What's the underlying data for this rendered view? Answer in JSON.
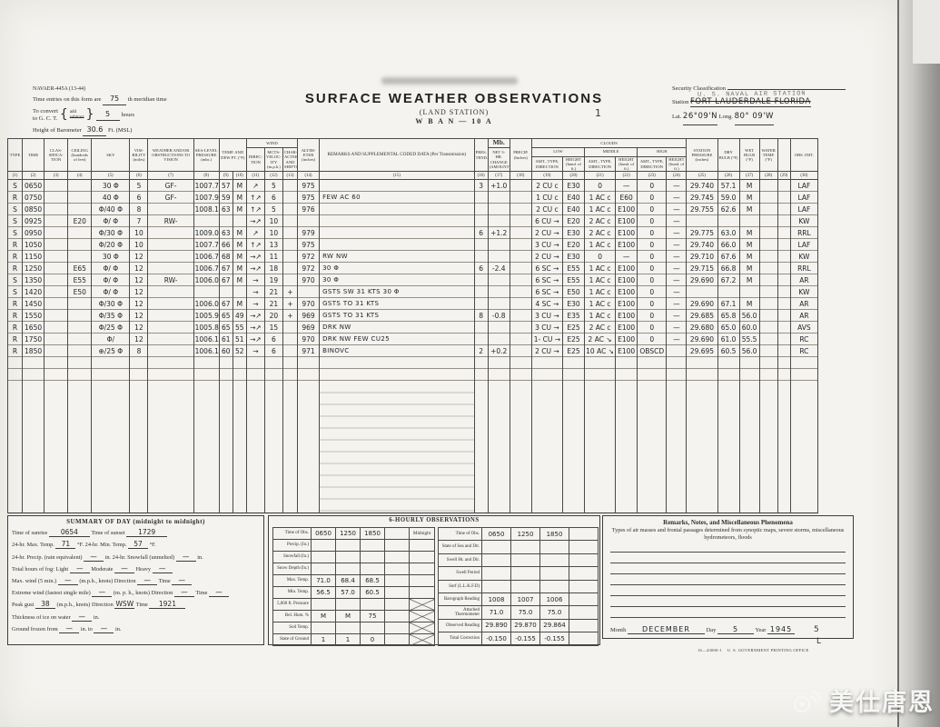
{
  "scan": {
    "watermark_text": "美仕唐恩",
    "stray_mark_1": "1",
    "stray_mark_5": "5",
    "stray_mark_L": "L"
  },
  "header": {
    "form_number": "NAVAER-445A (13-44)",
    "time_entries_prefix": "Time entries on this form are",
    "meridian": "75",
    "time_entries_suffix": "th meridian time",
    "convert_prefix": "To convert",
    "convert_line2": "to G. C. T.",
    "brace_add": "add",
    "brace_subtract": "subtract",
    "convert_hours": "5",
    "convert_suffix": "hours",
    "barometer_label": "Height of Barometer",
    "barometer_value": "30.6",
    "barometer_suffix": "Ft. (MSL)",
    "title": "SURFACE WEATHER OBSERVATIONS",
    "subtitle": "(LAND STATION)",
    "form_code": "W B A N — 10 A",
    "security_label": "Security Classification",
    "security_stamp": "U. S. NAVAL AIR STATION",
    "station_label": "Station",
    "station_value": "FORT LAUDERDALE FLORIDA",
    "lat_label": "Lat.",
    "lat_value": "26°09'N",
    "long_label": "Long.",
    "long_value": "80° 09'W"
  },
  "table": {
    "group_wind": "WIND",
    "group_mb": "Mb.",
    "group_clouds": "CLOUDS",
    "group_low": "LOW",
    "group_middle": "MIDDLE",
    "group_high": "HIGH",
    "columns": {
      "type": "TYPE",
      "time": "TIME",
      "classification": "CLAS-SIFICA-TION",
      "ceiling": "CEILING (hundreds of feet)",
      "sky": "SKY",
      "visibility": "VISI-BILITY (miles)",
      "weather": "WEATHER AND/OR OBSTRUCTIONS TO VISION",
      "sea_level_pressure": "SEA-LEVEL PRESSURE (mbs.)",
      "temp_dew": "TEMP. AND DEW PT. (°F)",
      "direction": "DIREC-TION",
      "velocity": "MCTS-VELOC-ITY (m.p.h.)",
      "character": "CHAR-ACTER AND SHIFTS",
      "altimeter": "ALTIM-ETER (inches)",
      "remarks": "REMARKS AND SUPPLEMENTAL CODED DATA (Per Transmission)",
      "pres_tend": "PRES. TEND.",
      "net_change": "NET 3-HR. CHANGE (AMOUNT)",
      "precip": "PRECIP. (Inches)",
      "amt_type_dir": "AMT., TYPE, DIRECTION",
      "height": "HEIGHT (hund. of ft.)",
      "station_pressure": "STATION PRESSURE (inches)",
      "dry_bulb": "DRY BULB (°F)",
      "wet_bulb": "WET BULB (°F)",
      "water_temp": "WATER TEMP. (°F)",
      "obs_init": "OBS. INIT."
    },
    "col_nums": [
      "(1)",
      "(2)",
      "(3)",
      "(4)",
      "(5)",
      "(6)",
      "(7)",
      "(8)",
      "(9)",
      "(10)",
      "(11)",
      "(12)",
      "(13)",
      "(14)",
      "(15)",
      "(16)",
      "(17)",
      "(18)",
      "(19)",
      "(20)",
      "(21)",
      "(22)",
      "(23)",
      "(24)",
      "(25)",
      "(26)",
      "(27)",
      "(28)",
      "(29)",
      "(30)"
    ],
    "rows": [
      [
        "S",
        "0650",
        "",
        "",
        "30 Φ",
        "5",
        "GF-",
        "1007.7",
        "57",
        "M",
        "↗",
        "5",
        "",
        "975",
        "",
        "3",
        "+1.0",
        "",
        "2 CU c",
        "E30",
        "0",
        "—",
        "0",
        "—",
        "29.740",
        "57.1",
        "M",
        "",
        "",
        "LAF"
      ],
      [
        "R",
        "0750",
        "",
        "",
        "40 Φ",
        "6",
        "GF-",
        "1007.9",
        "59",
        "M",
        "↑↗",
        "6",
        "",
        "975",
        "FEW AC 60",
        "",
        "",
        "",
        "1 CU c",
        "E40",
        "1 AC c",
        "E60",
        "0",
        "—",
        "29.745",
        "59.0",
        "M",
        "",
        "",
        "LAF"
      ],
      [
        "S",
        "0850",
        "",
        "",
        "Φ/40 Φ",
        "8",
        "",
        "1008.1",
        "63",
        "M",
        "↑↗",
        "5",
        "",
        "976",
        "",
        "",
        "",
        "",
        "2 CU c",
        "E40",
        "1 AC c",
        "E100",
        "0",
        "—",
        "29.755",
        "62.6",
        "M",
        "",
        "",
        "LAF"
      ],
      [
        "S",
        "0925",
        "",
        "E20",
        "Φ/ Φ",
        "7",
        "RW-",
        "",
        "",
        "",
        "→↗",
        "10",
        "",
        "",
        "",
        "",
        "",
        "",
        "6 CU →",
        "E20",
        "2 AC c",
        "E100",
        "0",
        "—",
        "",
        "",
        "",
        "",
        "",
        "KW"
      ],
      [
        "S",
        "0950",
        "",
        "",
        "Φ/30 Φ",
        "10",
        "",
        "1009.0",
        "63",
        "M",
        "↗",
        "10",
        "",
        "979",
        "",
        "6",
        "+1.2",
        "",
        "2 CU →",
        "E30",
        "2 AC c",
        "E100",
        "0",
        "—",
        "29.775",
        "63.0",
        "M",
        "",
        "",
        "RRL"
      ],
      [
        "R",
        "1050",
        "",
        "",
        "Φ/20 Φ",
        "10",
        "",
        "1007.7",
        "66",
        "M",
        "↑↗",
        "13",
        "",
        "975",
        "",
        "",
        "",
        "",
        "3 CU →",
        "E20",
        "1 AC c",
        "E100",
        "0",
        "—",
        "29.740",
        "66.0",
        "M",
        "",
        "",
        "LAF"
      ],
      [
        "R",
        "1150",
        "",
        "",
        "30 Φ",
        "12",
        "",
        "1006.7",
        "68",
        "M",
        "→↗",
        "11",
        "",
        "972",
        "RW NW",
        "",
        "",
        "",
        "2 CU →",
        "E30",
        "0",
        "—",
        "0",
        "—",
        "29.710",
        "67.6",
        "M",
        "",
        "",
        "KW"
      ],
      [
        "R",
        "1250",
        "",
        "E65",
        "Φ/ Φ",
        "12",
        "",
        "1006.7",
        "67",
        "M",
        "→↗",
        "18",
        "",
        "972",
        "30 Φ",
        "6",
        "-2.4",
        "",
        "6 SC →",
        "E55",
        "1 AC c",
        "E100",
        "0",
        "—",
        "29.715",
        "66.8",
        "M",
        "",
        "",
        "RRL"
      ],
      [
        "S",
        "1350",
        "",
        "E55",
        "Φ/ Φ",
        "12",
        "RW-",
        "1006.0",
        "67",
        "M",
        "→",
        "19",
        "",
        "970",
        "30 Φ",
        "",
        "",
        "",
        "6 SC →",
        "E55",
        "1 AC c",
        "E100",
        "0",
        "—",
        "29.690",
        "67.2",
        "M",
        "",
        "",
        "AR"
      ],
      [
        "S",
        "1420",
        "",
        "E50",
        "Φ/ Φ",
        "12",
        "",
        "",
        "",
        "",
        "→",
        "21",
        "+",
        "",
        "GSTS SW 31 KTS      30 Φ",
        "",
        "",
        "",
        "6 SC →",
        "E50",
        "1 AC c",
        "E100",
        "0",
        "—",
        "",
        "",
        "",
        "",
        "",
        "KW"
      ],
      [
        "R",
        "1450",
        "",
        "",
        "Φ/30 Φ",
        "12",
        "",
        "1006.0",
        "67",
        "M",
        "→",
        "21",
        "+",
        "970",
        "GSTS TO 31 KTS",
        "",
        "",
        "",
        "4 SC →",
        "E30",
        "1 AC c",
        "E100",
        "0",
        "—",
        "29.690",
        "67.1",
        "M",
        "",
        "",
        "AR"
      ],
      [
        "R",
        "1550",
        "",
        "",
        "Φ/35 Φ",
        "12",
        "",
        "1005.9",
        "65",
        "49",
        "→↗",
        "20",
        "+",
        "969",
        "GSTS TO 31 KTS",
        "8",
        "-0.8",
        "",
        "3 CU →",
        "E35",
        "1 AC c",
        "E100",
        "0",
        "—",
        "29.685",
        "65.8",
        "56.0",
        "",
        "",
        "AR"
      ],
      [
        "R",
        "1650",
        "",
        "",
        "Φ/25 Φ",
        "12",
        "",
        "1005.8",
        "65",
        "55",
        "→↗",
        "15",
        "",
        "969",
        "DRK NW",
        "",
        "",
        "",
        "3 CU →",
        "E25",
        "2 AC c",
        "E100",
        "0",
        "—",
        "29.680",
        "65.0",
        "60.0",
        "",
        "",
        "AVS"
      ],
      [
        "R",
        "1750",
        "",
        "",
        "Φ/",
        "12",
        "",
        "1006.1",
        "61",
        "51",
        "→↗",
        "6",
        "",
        "970",
        "DRK NW    FEW CU25",
        "",
        "",
        "",
        "1- CU →",
        "E25",
        "2 AC ↘",
        "E100",
        "0",
        "—",
        "29.690",
        "61.0",
        "55.5",
        "",
        "",
        "RC"
      ],
      [
        "R",
        "1850",
        "",
        "",
        "⊕/25 Φ",
        "8",
        "",
        "1006.1",
        "60",
        "52",
        "→",
        "6",
        "",
        "971",
        "BINOVC",
        "2",
        "+0.2",
        "",
        "2 CU →",
        "E25",
        "10 AC ↘",
        "E100",
        "OBSCD",
        "",
        "29.695",
        "60.5",
        "56.0",
        "",
        "",
        "RC"
      ]
    ]
  },
  "summary": {
    "title": "SUMMARY OF DAY (midnight to midnight)",
    "sunrise_label": "Time of sunrise",
    "sunrise": "0654",
    "sunset_label": "Time of sunset",
    "sunset": "1729",
    "max_label": "24-hr. Max. Temp.",
    "max_temp": "71",
    "max_suffix": "°F. 24-hr. Min. Temp.",
    "min_temp": "57",
    "min_suffix": "°F.",
    "precip_label": "24-hr. Precip. (rain equivalent)",
    "precip": "—",
    "precip_mid": "in. 24-hr. Snowfall (unmelted)",
    "snowfall": "—",
    "precip_suffix": "in.",
    "fog_label": "Total hours of fog: Light",
    "fog_light": "—",
    "fog_mod_label": "Moderate",
    "fog_moderate": "—",
    "fog_heavy_label": "Heavy",
    "fog_heavy": "—",
    "maxwind_label": "Max. wind (5 min.)",
    "maxwind": "—",
    "maxwind_mid": "(m.p.h., knots) Direction",
    "maxwind_dir": "—",
    "maxwind_time_label": "Time",
    "maxwind_time": "—",
    "extreme_label": "Extreme wind (fastest single mile)",
    "extreme": "—",
    "extreme_mid": "(m. p. h., knots) Direction",
    "extreme_dir": "—",
    "extreme_time_label": "Time",
    "extreme_time": "—",
    "gust_label": "Peak gust",
    "gust": "38",
    "gust_mid": "(m.p.h., knots) Direction",
    "gust_dir": "WSW",
    "gust_time_label": "Time",
    "gust_time": "1921",
    "ice_label": "Thickness of ice on water",
    "ice": "—",
    "ice_suffix": "in.",
    "frozen_label": "Ground frozen from",
    "frozen_from": "—",
    "frozen_mid": "in. to",
    "frozen_to": "—",
    "frozen_suffix": "in."
  },
  "six_hourly": {
    "title": "6-HOURLY OBSERVATIONS",
    "midnight_label": "Midnight",
    "left_rows": [
      {
        "label": "Time of Obs.",
        "values": [
          "0650",
          "1250",
          "1850",
          ""
        ],
        "mid": "label"
      },
      {
        "label": "Precip. (In.)",
        "values": [
          "",
          "",
          "",
          ""
        ],
        "mid": ""
      },
      {
        "label": "Snowfall (In.)",
        "values": [
          "",
          "",
          "",
          ""
        ],
        "mid": ""
      },
      {
        "label": "Snow Depth (In.)",
        "values": [
          "",
          "",
          "",
          ""
        ],
        "mid": ""
      },
      {
        "label": "Max. Temp.",
        "values": [
          "71.0",
          "68.4",
          "68.5",
          ""
        ],
        "mid": ""
      },
      {
        "label": "Min. Temp.",
        "values": [
          "56.5",
          "57.0",
          "60.5",
          ""
        ],
        "mid": ""
      },
      {
        "label": "5,000 ft. Pressure",
        "values": [
          "",
          "",
          "",
          ""
        ],
        "mid": "x"
      },
      {
        "label": "Rel. Hum. %",
        "values": [
          "M",
          "M",
          "75",
          ""
        ],
        "mid": "x"
      },
      {
        "label": "Soil Temp.",
        "values": [
          "",
          "",
          "",
          ""
        ],
        "mid": "x"
      },
      {
        "label": "State of Ground",
        "values": [
          "1",
          "1",
          "0",
          ""
        ],
        "mid": "x"
      }
    ],
    "right_rows": [
      {
        "label": "Time of Obs.",
        "values": [
          "0650",
          "1250",
          "1850",
          ""
        ]
      },
      {
        "label": "State of Sea and Dir.",
        "values": [
          "",
          "",
          "",
          ""
        ]
      },
      {
        "label": "Swell Ht. and Dir.",
        "values": [
          "",
          "",
          "",
          ""
        ]
      },
      {
        "label": "Swell Period",
        "values": [
          "",
          "",
          "",
          ""
        ]
      },
      {
        "label": "Surf (L.L.K.F.D)",
        "values": [
          "",
          "",
          "",
          ""
        ]
      },
      {
        "label": "Barograph Reading",
        "values": [
          "1008",
          "1007",
          "1006",
          ""
        ]
      },
      {
        "label": "Attached Thermometer",
        "values": [
          "71.0",
          "75.0",
          "75.0",
          ""
        ]
      },
      {
        "label": "Observed Reading",
        "values": [
          "29.890",
          "29.870",
          "29.864",
          ""
        ]
      },
      {
        "label": "Total Correction",
        "values": [
          "-0.150",
          "-0.155",
          "-0.155",
          ""
        ]
      }
    ]
  },
  "remarks_box": {
    "title": "Remarks, Notes, and Miscellaneous Phenomena",
    "subtitle": "Types of air masses and frontal passages determined from synoptic maps, severe storms, miscellaneous hydrometeors, floods",
    "month_label": "Month",
    "month": "DECEMBER",
    "day_label": "Day",
    "day": "5",
    "year_label": "Year",
    "year": "1945"
  },
  "footer": {
    "print_code": "16—43000-1",
    "print_office": "U. S. GOVERNMENT PRINTING OFFICE"
  }
}
